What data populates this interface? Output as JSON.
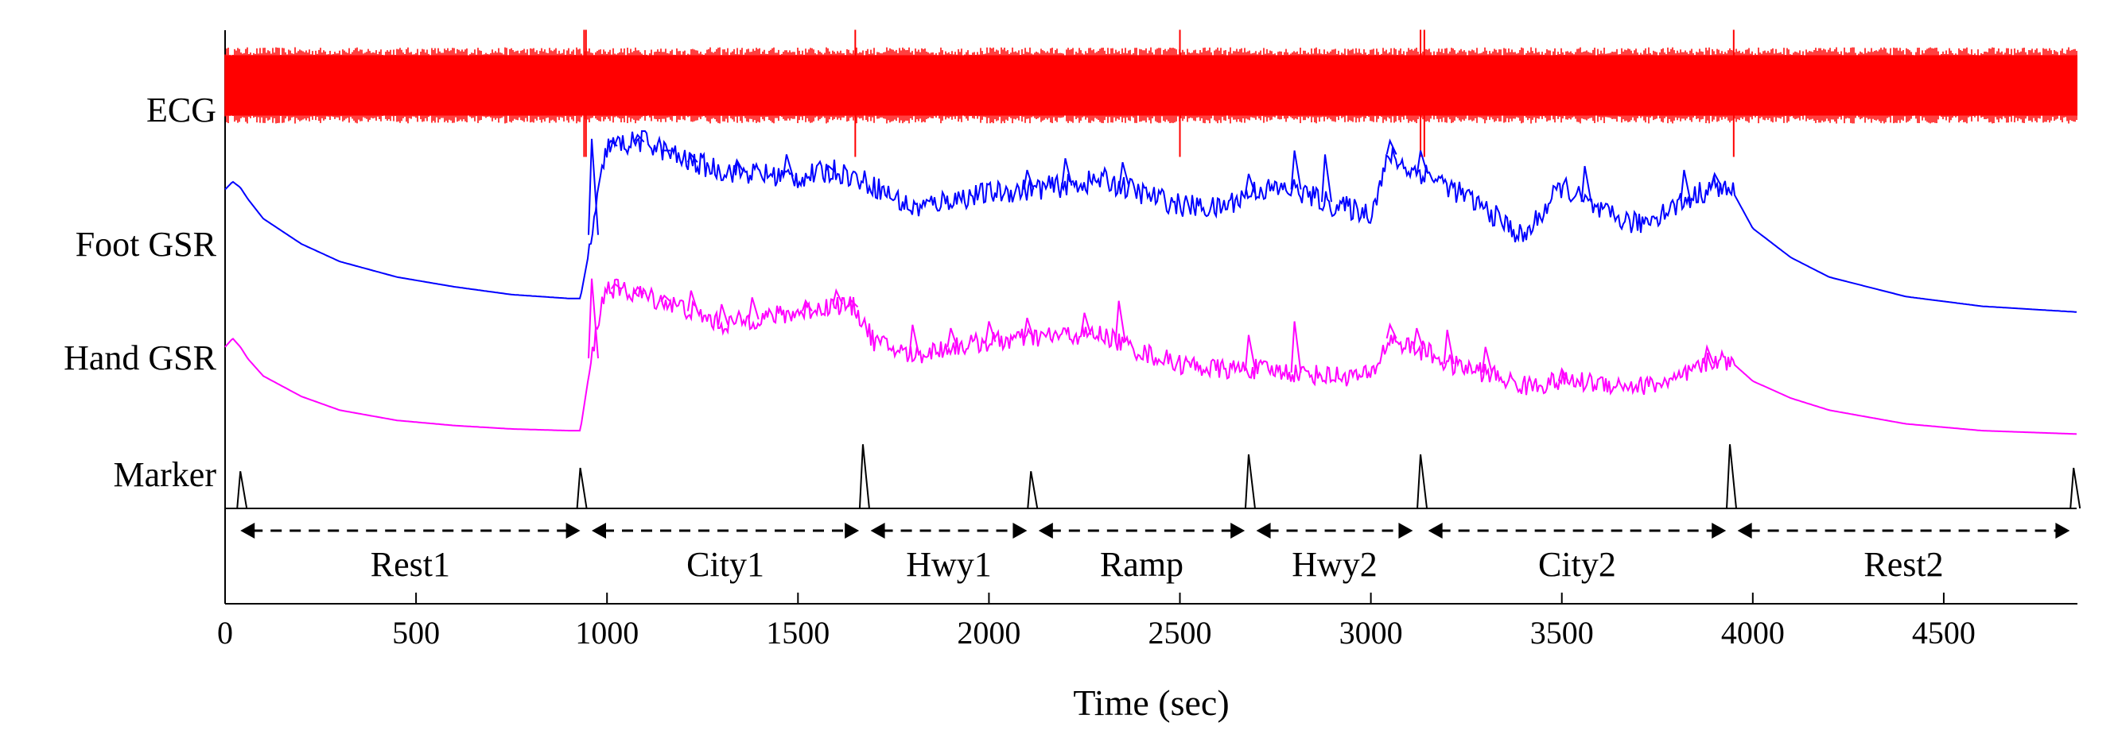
{
  "chart_data": {
    "type": "line",
    "title": "",
    "xlabel": "Time (sec)",
    "ylabel": "",
    "xlim": [
      0,
      4850
    ],
    "grid": false,
    "x_ticks": [
      0,
      500,
      1000,
      1500,
      2000,
      2500,
      3000,
      3500,
      4000,
      4500
    ],
    "x_tick_labels": [
      "0",
      "500",
      "1000",
      "1500",
      "2000",
      "2500",
      "3000",
      "3500",
      "4000",
      "4500"
    ],
    "series": [
      {
        "name": "ECG",
        "color": "#ff0000",
        "kind": "dense-signal",
        "x": [
          0,
          4850
        ],
        "y": [
          0.5,
          0.5
        ],
        "spikes_x": [
          940,
          945,
          1650,
          2500,
          3130,
          3140,
          3950
        ]
      },
      {
        "name": "Foot GSR",
        "color": "#0000ff",
        "kind": "smooth",
        "x": [
          0,
          20,
          40,
          60,
          100,
          200,
          300,
          450,
          600,
          750,
          900,
          930,
          950,
          980,
          1000,
          1100,
          1200,
          1300,
          1400,
          1500,
          1600,
          1700,
          1800,
          1900,
          2000,
          2100,
          2200,
          2300,
          2400,
          2500,
          2600,
          2700,
          2800,
          2900,
          3000,
          3050,
          3100,
          3150,
          3200,
          3300,
          3400,
          3500,
          3600,
          3700,
          3800,
          3900,
          3950,
          4000,
          4100,
          4200,
          4400,
          4600,
          4850
        ],
        "y": [
          0.7,
          0.74,
          0.71,
          0.65,
          0.55,
          0.42,
          0.33,
          0.25,
          0.2,
          0.16,
          0.14,
          0.14,
          0.35,
          0.7,
          0.92,
          0.95,
          0.85,
          0.8,
          0.78,
          0.76,
          0.8,
          0.72,
          0.6,
          0.65,
          0.68,
          0.7,
          0.72,
          0.75,
          0.68,
          0.62,
          0.6,
          0.7,
          0.7,
          0.62,
          0.58,
          0.88,
          0.8,
          0.78,
          0.72,
          0.6,
          0.45,
          0.72,
          0.58,
          0.52,
          0.62,
          0.72,
          0.68,
          0.5,
          0.35,
          0.25,
          0.15,
          0.1,
          0.07
        ],
        "spikes": [
          [
            960,
            0.96
          ],
          [
            1010,
            0.95
          ],
          [
            1080,
            0.98
          ],
          [
            1150,
            0.9
          ],
          [
            1220,
            0.88
          ],
          [
            1340,
            0.85
          ],
          [
            1470,
            0.88
          ],
          [
            1580,
            0.82
          ],
          [
            2100,
            0.8
          ],
          [
            2200,
            0.86
          ],
          [
            2350,
            0.84
          ],
          [
            2680,
            0.78
          ],
          [
            2800,
            0.9
          ],
          [
            2880,
            0.88
          ],
          [
            3050,
            0.95
          ],
          [
            3130,
            0.9
          ],
          [
            3560,
            0.82
          ],
          [
            3820,
            0.8
          ],
          [
            3900,
            0.78
          ]
        ]
      },
      {
        "name": "Hand GSR",
        "color": "#ff00ff",
        "kind": "smooth",
        "x": [
          0,
          20,
          40,
          60,
          100,
          200,
          300,
          450,
          600,
          750,
          900,
          930,
          950,
          980,
          1000,
          1100,
          1200,
          1300,
          1400,
          1500,
          1600,
          1650,
          1700,
          1800,
          1900,
          2000,
          2100,
          2200,
          2300,
          2400,
          2500,
          2600,
          2700,
          2800,
          2900,
          3000,
          3050,
          3100,
          3150,
          3200,
          3300,
          3400,
          3500,
          3600,
          3700,
          3800,
          3900,
          3950,
          4000,
          4100,
          4200,
          4400,
          4600,
          4850
        ],
        "y": [
          0.55,
          0.6,
          0.55,
          0.48,
          0.38,
          0.26,
          0.18,
          0.12,
          0.09,
          0.07,
          0.06,
          0.06,
          0.35,
          0.75,
          0.9,
          0.85,
          0.78,
          0.68,
          0.72,
          0.75,
          0.8,
          0.78,
          0.58,
          0.5,
          0.55,
          0.58,
          0.6,
          0.62,
          0.62,
          0.52,
          0.45,
          0.42,
          0.42,
          0.4,
          0.38,
          0.38,
          0.6,
          0.55,
          0.52,
          0.45,
          0.4,
          0.32,
          0.35,
          0.34,
          0.32,
          0.35,
          0.48,
          0.45,
          0.35,
          0.25,
          0.18,
          0.1,
          0.06,
          0.04
        ],
        "spikes": [
          [
            960,
            0.95
          ],
          [
            1020,
            0.92
          ],
          [
            1080,
            0.9
          ],
          [
            1150,
            0.85
          ],
          [
            1220,
            0.88
          ],
          [
            1300,
            0.8
          ],
          [
            1380,
            0.84
          ],
          [
            1520,
            0.82
          ],
          [
            1600,
            0.88
          ],
          [
            1640,
            0.82
          ],
          [
            1800,
            0.68
          ],
          [
            1900,
            0.66
          ],
          [
            2000,
            0.7
          ],
          [
            2100,
            0.72
          ],
          [
            2250,
            0.75
          ],
          [
            2340,
            0.82
          ],
          [
            2680,
            0.62
          ],
          [
            2800,
            0.7
          ],
          [
            3050,
            0.68
          ],
          [
            3120,
            0.66
          ],
          [
            3200,
            0.65
          ],
          [
            3300,
            0.55
          ],
          [
            3500,
            0.42
          ],
          [
            3880,
            0.55
          ]
        ]
      },
      {
        "name": "Marker",
        "color": "#000000",
        "kind": "step",
        "x": [
          0,
          4850
        ],
        "y": [
          0.0,
          0.0
        ],
        "spikes": [
          [
            40,
            0.55
          ],
          [
            930,
            0.6
          ],
          [
            1670,
            0.95
          ],
          [
            2110,
            0.55
          ],
          [
            2680,
            0.8
          ],
          [
            3130,
            0.8
          ],
          [
            3940,
            0.95
          ],
          [
            4840,
            0.6
          ]
        ]
      }
    ],
    "annotations": [
      {
        "label": "Rest1",
        "x_start": 40,
        "x_end": 930
      },
      {
        "label": "City1",
        "x_start": 960,
        "x_end": 1660
      },
      {
        "label": "Hwy1",
        "x_start": 1690,
        "x_end": 2100
      },
      {
        "label": "Ramp",
        "x_start": 2130,
        "x_end": 2670
      },
      {
        "label": "Hwy2",
        "x_start": 2700,
        "x_end": 3110
      },
      {
        "label": "City2",
        "x_start": 3150,
        "x_end": 3930
      },
      {
        "label": "Rest2",
        "x_start": 3960,
        "x_end": 4830
      }
    ]
  }
}
